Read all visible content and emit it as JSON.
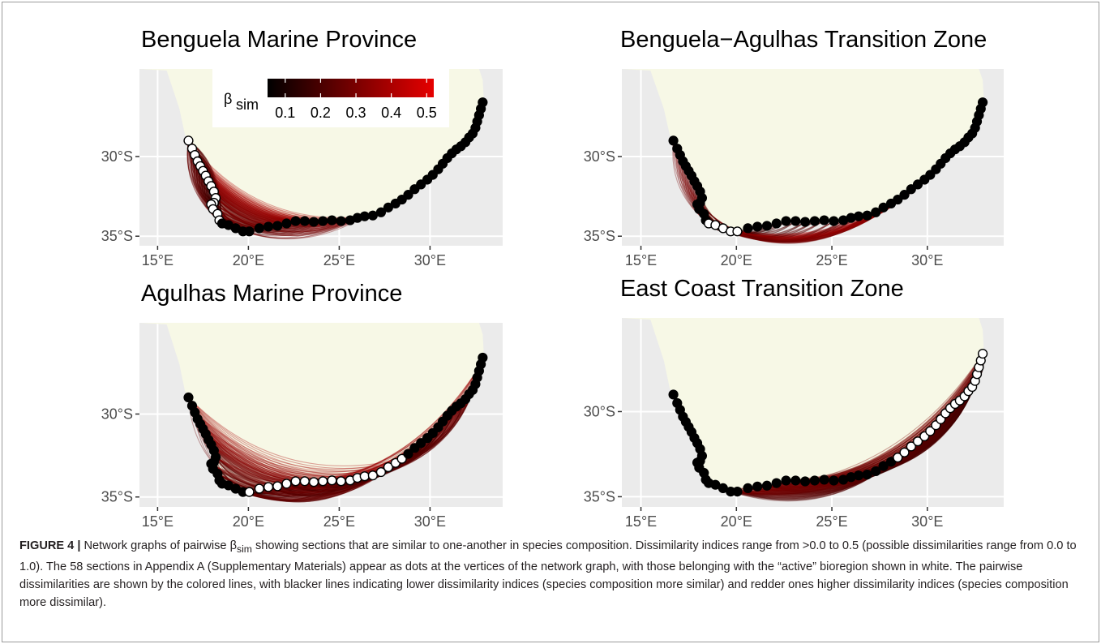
{
  "caption": {
    "label": "FIGURE 4 |",
    "pre": " Network graphs of pairwise ",
    "beta": "β",
    "beta_sub": "sim",
    "post": " showing sections that are similar to one-another in species composition. Dissimilarity indices range from >0.0 to 0.5 (possible dissimilarities range from 0.0 to 1.0). The 58 sections in Appendix A (Supplementary Materials) appear as dots at the vertices of the network graph, with those belonging with the “active” bioregion shown in white. The pairwise dissimilarities are shown by the colored lines, with blacker lines indicating lower dissimilarity indices (species composition more similar) and redder ones higher dissimilarity indices (species composition more dissimilar)."
  },
  "colors": {
    "panel_bg": "#ebebeb",
    "grid": "#ffffff",
    "land": "#f7f8e6",
    "low": "#000000",
    "high": "#e60000"
  },
  "chart_data": {
    "type": "network",
    "xlim": [
      14,
      34
    ],
    "ylim": [
      -35.6,
      -24.5
    ],
    "x_ticks": [
      15,
      20,
      25,
      30
    ],
    "x_tick_labels": [
      "15°E",
      "20°E",
      "25°E",
      "30°E"
    ],
    "y_ticks": [
      -30,
      -35
    ],
    "y_tick_labels": [
      "30°S",
      "35°S"
    ],
    "legend": {
      "title": "β",
      "title_sub": "sim",
      "range": [
        0.05,
        0.52
      ],
      "ticks": [
        0.1,
        0.2,
        0.3,
        0.4,
        0.5
      ],
      "tick_labels": [
        "0.1",
        "0.2",
        "0.3",
        "0.4",
        "0.5"
      ]
    },
    "sites": [
      [
        16.7,
        -29.0
      ],
      [
        16.9,
        -29.5
      ],
      [
        17.05,
        -29.9
      ],
      [
        17.2,
        -30.3
      ],
      [
        17.35,
        -30.6
      ],
      [
        17.5,
        -30.9
      ],
      [
        17.65,
        -31.2
      ],
      [
        17.8,
        -31.55
      ],
      [
        17.95,
        -31.85
      ],
      [
        18.1,
        -32.2
      ],
      [
        18.2,
        -32.6
      ],
      [
        18.1,
        -32.9
      ],
      [
        17.95,
        -33.0
      ],
      [
        18.05,
        -33.3
      ],
      [
        18.3,
        -33.6
      ],
      [
        18.4,
        -34.0
      ],
      [
        18.55,
        -34.2
      ],
      [
        18.9,
        -34.3
      ],
      [
        19.3,
        -34.5
      ],
      [
        19.7,
        -34.7
      ],
      [
        20.05,
        -34.7
      ],
      [
        20.6,
        -34.5
      ],
      [
        21.1,
        -34.4
      ],
      [
        21.6,
        -34.35
      ],
      [
        22.1,
        -34.2
      ],
      [
        22.6,
        -34.05
      ],
      [
        23.1,
        -34.05
      ],
      [
        23.6,
        -34.1
      ],
      [
        24.1,
        -34.05
      ],
      [
        24.6,
        -34.0
      ],
      [
        25.1,
        -34.05
      ],
      [
        25.6,
        -34.0
      ],
      [
        26.0,
        -33.85
      ],
      [
        26.4,
        -33.75
      ],
      [
        26.85,
        -33.7
      ],
      [
        27.3,
        -33.5
      ],
      [
        27.7,
        -33.2
      ],
      [
        28.1,
        -32.95
      ],
      [
        28.45,
        -32.7
      ],
      [
        28.8,
        -32.4
      ],
      [
        29.15,
        -32.05
      ],
      [
        29.5,
        -31.75
      ],
      [
        29.85,
        -31.45
      ],
      [
        30.15,
        -31.15
      ],
      [
        30.45,
        -30.8
      ],
      [
        30.7,
        -30.45
      ],
      [
        30.95,
        -30.1
      ],
      [
        31.2,
        -29.8
      ],
      [
        31.45,
        -29.55
      ],
      [
        31.7,
        -29.35
      ],
      [
        31.95,
        -29.1
      ],
      [
        32.15,
        -28.8
      ],
      [
        32.35,
        -28.55
      ],
      [
        32.5,
        -28.2
      ],
      [
        32.6,
        -27.8
      ],
      [
        32.7,
        -27.4
      ],
      [
        32.8,
        -27.0
      ],
      [
        32.9,
        -26.6
      ]
    ],
    "panels": [
      {
        "title": "Benguela Marine Province",
        "active": [
          0,
          15
        ],
        "target": [
          0,
          33
        ],
        "spread": 0.35
      },
      {
        "title": "Benguela−Agulhas Transition Zone",
        "active": [
          16,
          20
        ],
        "target": [
          0,
          44
        ],
        "spread": 0.38
      },
      {
        "title": "Agulhas Marine Province",
        "active": [
          20,
          38
        ],
        "target": [
          0,
          57
        ],
        "spread": 0.3
      },
      {
        "title": "East Coast Transition Zone",
        "active": [
          38,
          57
        ],
        "target": [
          18,
          57
        ],
        "spread": 0.22
      }
    ]
  }
}
